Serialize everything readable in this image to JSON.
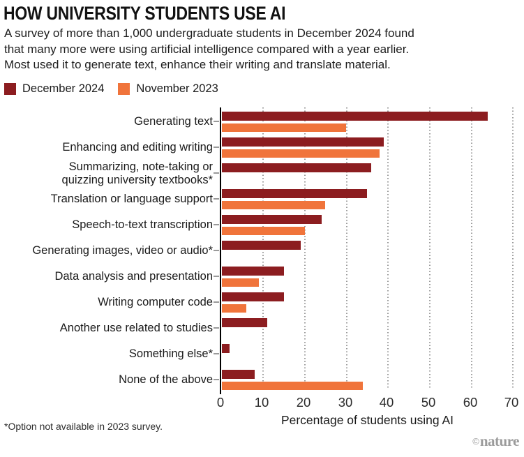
{
  "header": {
    "title": "HOW UNIVERSITY STUDENTS USE AI",
    "subtitle": "A survey of more than 1,000 undergraduate students in December 2024 found\nthat many more were using artificial intelligence compared with a year earlier.\nMost used it to generate text, enhance their writing and translate material."
  },
  "legend": {
    "items": [
      {
        "label": "December 2024"
      },
      {
        "label": "November 2023"
      }
    ]
  },
  "colors": {
    "december_2024": "#8c1d20",
    "november_2023": "#f0743b",
    "gridline": "#9a9a9a",
    "axis": "#000000",
    "credit_gray": "#9b9b9b"
  },
  "chart_data": {
    "type": "bar",
    "orientation": "horizontal",
    "title": "HOW UNIVERSITY STUDENTS USE AI",
    "xlabel": "Percentage of students using AI",
    "xlim": [
      0,
      70
    ],
    "xticks": [
      "0",
      "10",
      "20",
      "30",
      "40",
      "50",
      "60",
      "70"
    ],
    "grid": "vertical dotted",
    "legend_position": "top-left",
    "series_names": [
      "December 2024",
      "November 2023"
    ],
    "rows": [
      {
        "category": "Generating text",
        "dec": 64,
        "nov": 30
      },
      {
        "category": "Enhancing and editing writing",
        "dec": 39,
        "nov": 38
      },
      {
        "category": "Summarizing, note-taking or\nquizzing university textbooks*",
        "dec": 36,
        "nov": null
      },
      {
        "category": "Translation or language support",
        "dec": 35,
        "nov": 25
      },
      {
        "category": "Speech-to-text transcription",
        "dec": 24,
        "nov": 20
      },
      {
        "category": "Generating images, video or audio*",
        "dec": 19,
        "nov": null
      },
      {
        "category": "Data analysis and presentation",
        "dec": 15,
        "nov": 9
      },
      {
        "category": "Writing computer code",
        "dec": 15,
        "nov": 6
      },
      {
        "category": "Another use related to studies",
        "dec": 11,
        "nov": null
      },
      {
        "category": "Something else*",
        "dec": 2,
        "nov": null
      },
      {
        "category": "None of the above",
        "dec": 8,
        "nov": 34
      }
    ]
  },
  "footnote": "*Option not available in 2023 survey.",
  "credit": {
    "copyright": "©",
    "brand": "nature"
  }
}
